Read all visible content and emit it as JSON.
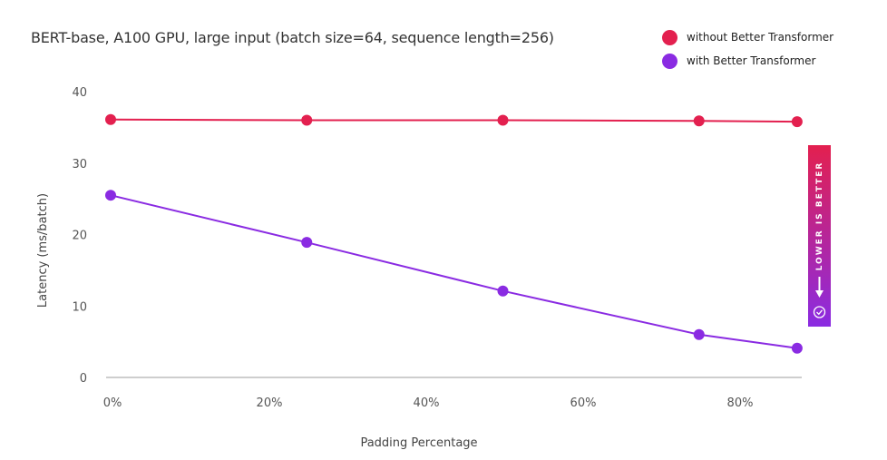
{
  "chart_data": {
    "type": "line",
    "title": "BERT-base, A100 GPU, large input (batch size=64, sequence length=256)",
    "xlabel": "Padding Percentage",
    "ylabel": "Latency (ms/batch)",
    "x": [
      0,
      25,
      50,
      75,
      87.5
    ],
    "x_unit": "%",
    "xticks": [
      "0%",
      "20%",
      "40%",
      "60%",
      "80%"
    ],
    "yticks": [
      "0",
      "10",
      "20",
      "30",
      "40"
    ],
    "ylim": [
      0,
      40
    ],
    "grid": false,
    "legend_position": "top-right",
    "series": [
      {
        "name": "without Better Transformer",
        "color": "#e3204f",
        "values": [
          36.1,
          36.0,
          36.0,
          35.9,
          35.8
        ]
      },
      {
        "name": "with Better Transformer",
        "color": "#8a2be2",
        "values": [
          25.5,
          18.9,
          12.1,
          6.0,
          4.1
        ]
      }
    ],
    "annotation": "LOWER IS BETTER"
  },
  "legend": {
    "items": [
      {
        "label": "without Better Transformer",
        "color": "#e3204f"
      },
      {
        "label": "with Better Transformer",
        "color": "#8a2be2"
      }
    ]
  },
  "badge": {
    "text": "LOWER IS BETTER",
    "icons": [
      "arrow-down-icon",
      "check-circle-icon"
    ]
  }
}
